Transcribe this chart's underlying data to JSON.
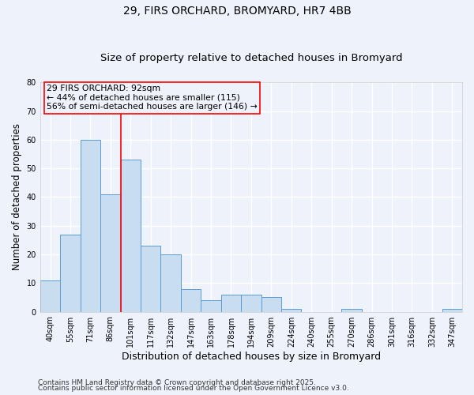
{
  "title1": "29, FIRS ORCHARD, BROMYARD, HR7 4BB",
  "title2": "Size of property relative to detached houses in Bromyard",
  "xlabel": "Distribution of detached houses by size in Bromyard",
  "ylabel": "Number of detached properties",
  "categories": [
    "40sqm",
    "55sqm",
    "71sqm",
    "86sqm",
    "101sqm",
    "117sqm",
    "132sqm",
    "147sqm",
    "163sqm",
    "178sqm",
    "194sqm",
    "209sqm",
    "224sqm",
    "240sqm",
    "255sqm",
    "270sqm",
    "286sqm",
    "301sqm",
    "316sqm",
    "332sqm",
    "347sqm"
  ],
  "values": [
    11,
    27,
    60,
    41,
    53,
    23,
    20,
    8,
    4,
    6,
    6,
    5,
    1,
    0,
    0,
    1,
    0,
    0,
    0,
    0,
    1
  ],
  "bar_color": "#c9ddf0",
  "bar_edge_color": "#5b9bd5",
  "ylim": [
    0,
    80
  ],
  "yticks": [
    0,
    10,
    20,
    30,
    40,
    50,
    60,
    70,
    80
  ],
  "red_line_x": 3.5,
  "annotation_line1": "29 FIRS ORCHARD: 92sqm",
  "annotation_line2": "← 44% of detached houses are smaller (115)",
  "annotation_line3": "56% of semi-detached houses are larger (146) →",
  "footer1": "Contains HM Land Registry data © Crown copyright and database right 2025.",
  "footer2": "Contains public sector information licensed under the Open Government Licence v3.0.",
  "background_color": "#eef2fb",
  "grid_color": "#ffffff",
  "title_fontsize": 10,
  "subtitle_fontsize": 9.5,
  "tick_fontsize": 7,
  "ylabel_fontsize": 8.5,
  "xlabel_fontsize": 9,
  "footer_fontsize": 6.5,
  "annotation_fontsize": 7.8
}
